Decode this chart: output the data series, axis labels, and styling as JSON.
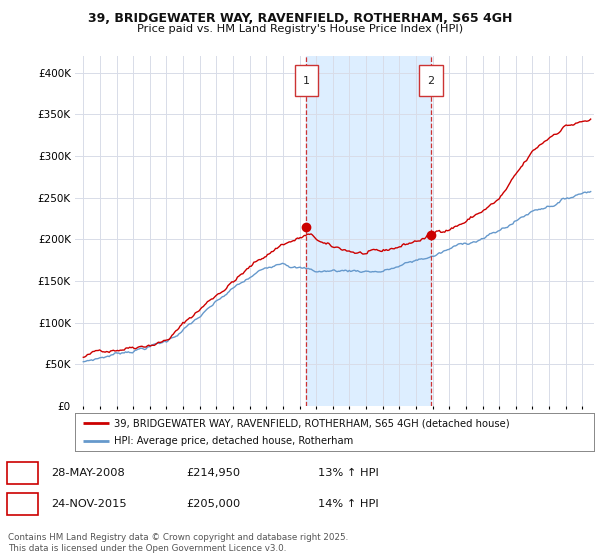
{
  "title_line1": "39, BRIDGEWATER WAY, RAVENFIELD, ROTHERHAM, S65 4GH",
  "title_line2": "Price paid vs. HM Land Registry's House Price Index (HPI)",
  "background_color": "#ffffff",
  "plot_bg_color": "#ffffff",
  "grid_color": "#d8dce8",
  "red_line_color": "#cc0000",
  "blue_line_color": "#6699cc",
  "shade_color": "#ddeeff",
  "sale1_date_x": 2008.41,
  "sale1_price": 214950,
  "sale2_date_x": 2015.9,
  "sale2_price": 205000,
  "vline_color": "#cc3333",
  "legend1_text": "39, BRIDGEWATER WAY, RAVENFIELD, ROTHERHAM, S65 4GH (detached house)",
  "legend2_text": "HPI: Average price, detached house, Rotherham",
  "footer": "Contains HM Land Registry data © Crown copyright and database right 2025.\nThis data is licensed under the Open Government Licence v3.0.",
  "ylim": [
    0,
    420000
  ],
  "yticks": [
    0,
    50000,
    100000,
    150000,
    200000,
    250000,
    300000,
    350000,
    400000
  ],
  "xlim_start": 1994.5,
  "xlim_end": 2025.7
}
